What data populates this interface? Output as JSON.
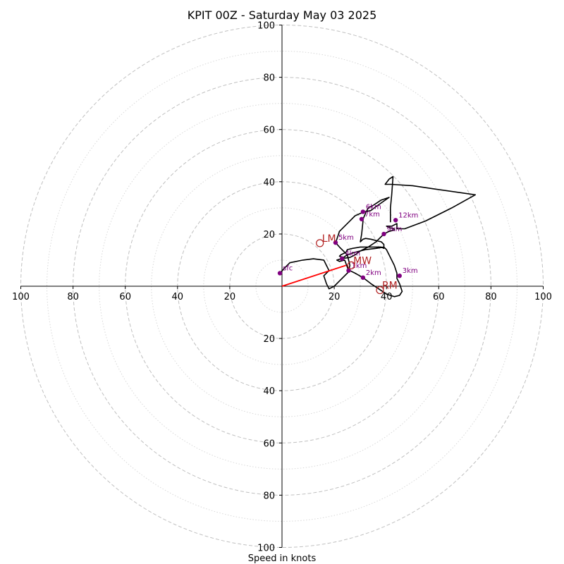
{
  "chart_data": {
    "type": "hodograph",
    "title": "KPIT 00Z - Saturday May 03 2025",
    "xlabel": "Speed in knots",
    "range": [
      -100,
      100
    ],
    "ring_major": [
      20,
      40,
      60,
      80,
      100
    ],
    "ring_minor": [
      10,
      30,
      50,
      70,
      90
    ],
    "x_ticks": [
      {
        "value": -100,
        "label": "100"
      },
      {
        "value": -80,
        "label": "80"
      },
      {
        "value": -60,
        "label": "60"
      },
      {
        "value": -40,
        "label": "40"
      },
      {
        "value": -20,
        "label": "20"
      },
      {
        "value": 20,
        "label": "20"
      },
      {
        "value": 40,
        "label": "40"
      },
      {
        "value": 60,
        "label": "60"
      },
      {
        "value": 80,
        "label": "80"
      },
      {
        "value": 100,
        "label": "100"
      }
    ],
    "y_ticks": [
      {
        "value": 100,
        "label": "100"
      },
      {
        "value": 80,
        "label": "80"
      },
      {
        "value": 60,
        "label": "60"
      },
      {
        "value": 40,
        "label": "40"
      },
      {
        "value": 20,
        "label": "20"
      },
      {
        "value": -20,
        "label": "20"
      },
      {
        "value": -40,
        "label": "40"
      },
      {
        "value": -60,
        "label": "60"
      },
      {
        "value": -80,
        "label": "80"
      },
      {
        "value": -100,
        "label": "100"
      }
    ],
    "trace": [
      [
        -0.8,
        5
      ],
      [
        1,
        7
      ],
      [
        3,
        9
      ],
      [
        8,
        10
      ],
      [
        12,
        10.5
      ],
      [
        16,
        10
      ],
      [
        17,
        8
      ],
      [
        18,
        6
      ],
      [
        16,
        4
      ],
      [
        17,
        1
      ],
      [
        18,
        -1
      ],
      [
        20,
        0
      ],
      [
        22,
        2
      ],
      [
        24,
        4
      ],
      [
        25,
        5
      ],
      [
        26,
        6
      ],
      [
        28,
        5
      ],
      [
        31,
        3.3
      ],
      [
        34,
        1
      ],
      [
        37,
        -1
      ],
      [
        40,
        -3
      ],
      [
        43,
        -4
      ],
      [
        45,
        -3.5
      ],
      [
        46,
        -2
      ],
      [
        45,
        1
      ],
      [
        44,
        3
      ],
      [
        44,
        5
      ],
      [
        43,
        8
      ],
      [
        41,
        12
      ],
      [
        40,
        14
      ],
      [
        39,
        15
      ],
      [
        36,
        14.5
      ],
      [
        32,
        14
      ],
      [
        28,
        13
      ],
      [
        25,
        12
      ],
      [
        23.5,
        11
      ],
      [
        22,
        11.5
      ],
      [
        22.5,
        12
      ],
      [
        24.5,
        13
      ],
      [
        25,
        14
      ],
      [
        27,
        14.5
      ],
      [
        30,
        15
      ],
      [
        33,
        15
      ],
      [
        36,
        15
      ],
      [
        38,
        15
      ],
      [
        39,
        14.5
      ],
      [
        39,
        16
      ],
      [
        38,
        17
      ],
      [
        36,
        17.5
      ],
      [
        34,
        18
      ],
      [
        32,
        18.3
      ],
      [
        31,
        18
      ],
      [
        30,
        17
      ],
      [
        30.5,
        20
      ],
      [
        31,
        25
      ],
      [
        31,
        25.7
      ],
      [
        32,
        28
      ],
      [
        33,
        30
      ],
      [
        35,
        31
      ],
      [
        38,
        33
      ],
      [
        41,
        34
      ],
      [
        36,
        30.5
      ],
      [
        34,
        29
      ],
      [
        31.5,
        28.5
      ],
      [
        28,
        27
      ],
      [
        26,
        25
      ],
      [
        24,
        23
      ],
      [
        22,
        21
      ],
      [
        21,
        18
      ],
      [
        20.5,
        16.7
      ],
      [
        22,
        15
      ],
      [
        24,
        13
      ],
      [
        25,
        12
      ],
      [
        25.5,
        10
      ],
      [
        26,
        8
      ],
      [
        25.5,
        6
      ],
      [
        24,
        10
      ],
      [
        22,
        9.5
      ],
      [
        21,
        10
      ],
      [
        23,
        10.6
      ],
      [
        26,
        11
      ],
      [
        28,
        12
      ],
      [
        30,
        13.5
      ],
      [
        33,
        15
      ],
      [
        36,
        17
      ],
      [
        39,
        20
      ],
      [
        41,
        21
      ],
      [
        43,
        21.5
      ],
      [
        43,
        22
      ],
      [
        41,
        22.5
      ],
      [
        40,
        23
      ],
      [
        42,
        23
      ],
      [
        44,
        24
      ],
      [
        44,
        22
      ],
      [
        47,
        22
      ],
      [
        55,
        25
      ],
      [
        65,
        30
      ],
      [
        74,
        35
      ],
      [
        60,
        37
      ],
      [
        50,
        38.5
      ],
      [
        42,
        39
      ],
      [
        39.5,
        39
      ],
      [
        41,
        41
      ],
      [
        42.5,
        42
      ],
      [
        42,
        35
      ],
      [
        41.5,
        30
      ],
      [
        41.5,
        24.5
      ]
    ],
    "height_points": [
      {
        "label": "sfc",
        "x": -0.8,
        "y": 5
      },
      {
        "label": "1km",
        "x": 25.5,
        "y": 6
      },
      {
        "label": "2km",
        "x": 31,
        "y": 3.3
      },
      {
        "label": "3km",
        "x": 45,
        "y": 4
      },
      {
        "label": "4km",
        "x": 23,
        "y": 10.6
      },
      {
        "label": "5km",
        "x": 20.5,
        "y": 16.7
      },
      {
        "label": "6km",
        "x": 31,
        "y": 28.5
      },
      {
        "label": "7km",
        "x": 30.5,
        "y": 25.7
      },
      {
        "label": "9km",
        "x": 39,
        "y": 20
      },
      {
        "label": "12km",
        "x": 43.5,
        "y": 25.3
      }
    ],
    "motion_markers": [
      {
        "label": "LM",
        "x": 14.5,
        "y": 16.5
      },
      {
        "label": "MW",
        "x": 26.5,
        "y": 8
      },
      {
        "label": "RM",
        "x": 37.5,
        "y": -1.5
      }
    ],
    "storm_vector": {
      "x": 24.5,
      "y": 8
    },
    "colors": {
      "trace": "#000000",
      "height_point": "#800080",
      "motion_marker": "#b22222",
      "storm_vector": "#ff0000",
      "grid": "#c0c0c0"
    }
  }
}
